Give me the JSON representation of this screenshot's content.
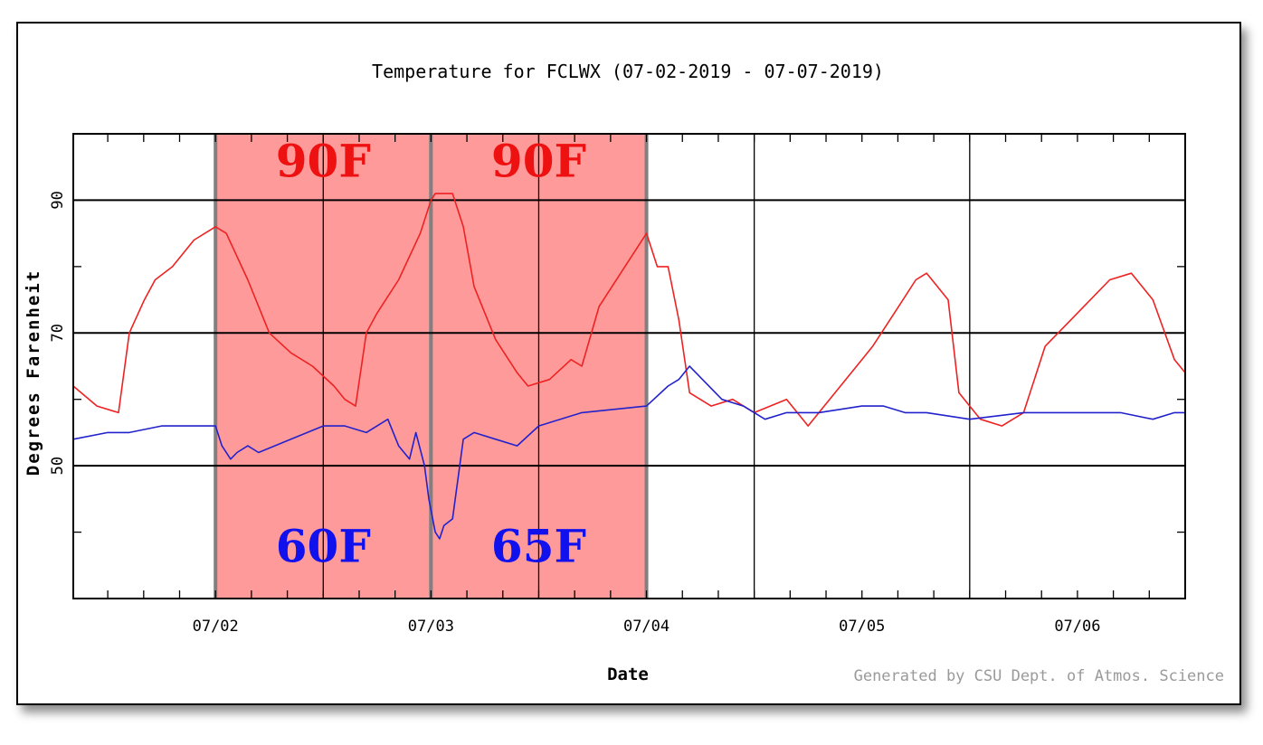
{
  "chart_data": {
    "type": "line",
    "title": "Temperature for FCLWX (07-02-2019 - 07-07-2019)",
    "xlabel": "Date",
    "ylabel": "Degrees Farenheit",
    "credit": "Generated by CSU Dept. of Atmos. Science",
    "x_tick_labels": [
      "07/02",
      "07/03",
      "07/04",
      "07/05",
      "07/06"
    ],
    "x_tick_days": [
      1.0,
      2.0,
      3.0,
      4.0,
      5.0
    ],
    "xlim_days": [
      0.34,
      5.5
    ],
    "y_tick_labels": [
      "50",
      "70",
      "90"
    ],
    "y_tick_values": [
      50,
      70,
      90
    ],
    "ylim": [
      30,
      100
    ],
    "grid": true,
    "x_unit_note": "x in days on the date axis, 07/02 = 1.0",
    "shaded_regions": [
      {
        "x_start": 1.0,
        "x_end": 2.0,
        "color": "#ff9a9a"
      },
      {
        "x_start": 2.0,
        "x_end": 3.0,
        "color": "#ff9a9a"
      }
    ],
    "annotations": [
      {
        "text": "90F",
        "x": 1.5,
        "y": 96,
        "color": "#ee1111"
      },
      {
        "text": "90F",
        "x": 2.5,
        "y": 96,
        "color": "#ee1111"
      },
      {
        "text": "60F",
        "x": 1.5,
        "y": 38,
        "color": "#1111ee"
      },
      {
        "text": "65F",
        "x": 2.5,
        "y": 38,
        "color": "#1111ee"
      }
    ],
    "series": [
      {
        "color": "#ee2222",
        "x": [
          0.34,
          0.45,
          0.55,
          0.6,
          0.67,
          0.72,
          0.8,
          0.9,
          1.0,
          1.05,
          1.15,
          1.25,
          1.35,
          1.45,
          1.55,
          1.6,
          1.65,
          1.7,
          1.75,
          1.85,
          1.95,
          2.0,
          2.02,
          2.1,
          2.15,
          2.2,
          2.3,
          2.4,
          2.45,
          2.55,
          2.65,
          2.7,
          2.78,
          2.9,
          3.0,
          3.05,
          3.1,
          3.15,
          3.2,
          3.3,
          3.4,
          3.5,
          3.65,
          3.75,
          3.85,
          4.0,
          4.05,
          4.15,
          4.25,
          4.3,
          4.35,
          4.4,
          4.45,
          4.55,
          4.65,
          4.75,
          4.85,
          5.0,
          5.15,
          5.25,
          5.35,
          5.45,
          5.5
        ],
        "y": [
          62,
          59,
          58,
          70,
          75,
          78,
          80,
          84,
          86,
          85,
          78,
          70,
          67,
          65,
          62,
          60,
          59,
          70,
          73,
          78,
          85,
          90,
          91,
          91,
          86,
          77,
          69,
          64,
          62,
          63,
          66,
          65,
          74,
          80,
          85,
          80,
          80,
          72,
          61,
          59,
          60,
          58,
          60,
          56,
          60,
          66,
          68,
          73,
          78,
          79,
          77,
          75,
          61,
          57,
          56,
          58,
          68,
          73,
          78,
          79,
          75,
          66,
          64
        ]
      },
      {
        "color": "#2222cc",
        "x": [
          0.34,
          0.5,
          0.6,
          0.75,
          0.9,
          1.0,
          1.03,
          1.07,
          1.1,
          1.15,
          1.2,
          1.35,
          1.5,
          1.6,
          1.7,
          1.8,
          1.85,
          1.9,
          1.93,
          1.97,
          1.99,
          2.02,
          2.04,
          2.06,
          2.1,
          2.15,
          2.2,
          2.3,
          2.4,
          2.5,
          2.7,
          3.0,
          3.1,
          3.15,
          3.2,
          3.35,
          3.45,
          3.55,
          3.65,
          3.8,
          4.0,
          4.1,
          4.2,
          4.3,
          4.5,
          4.75,
          5.0,
          5.2,
          5.35,
          5.45,
          5.5
        ],
        "y": [
          54,
          55,
          55,
          56,
          56,
          56,
          53,
          51,
          52,
          53,
          52,
          54,
          56,
          56,
          55,
          57,
          53,
          51,
          55,
          50,
          45,
          40,
          39,
          41,
          42,
          54,
          55,
          54,
          53,
          56,
          58,
          59,
          62,
          63,
          65,
          60,
          59,
          57,
          58,
          58,
          59,
          59,
          58,
          58,
          57,
          58,
          58,
          58,
          57,
          58,
          58
        ]
      }
    ]
  }
}
